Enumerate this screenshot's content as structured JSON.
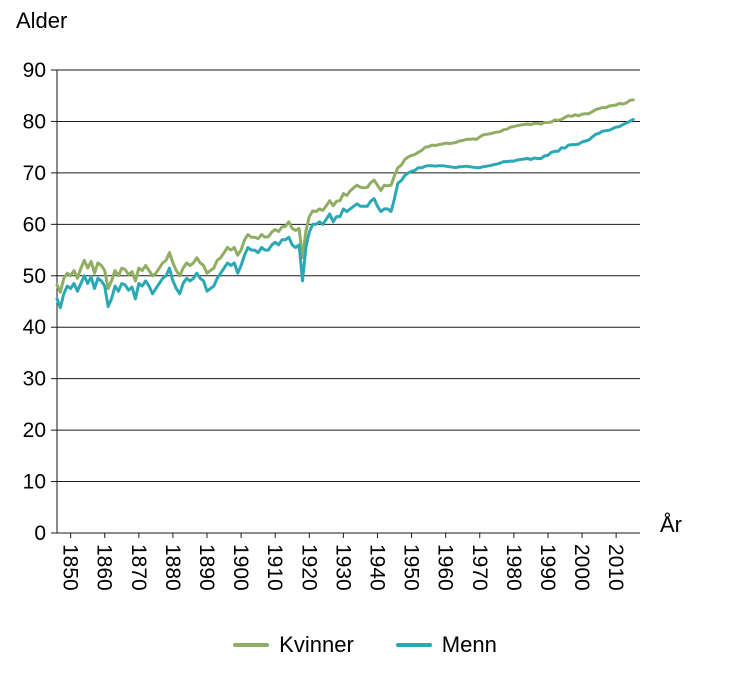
{
  "chart_data": {
    "type": "line",
    "title": "",
    "ylabel": "Alder",
    "xlabel": "År",
    "ylim": [
      0,
      90
    ],
    "ytick_step": 10,
    "xticks": [
      1850,
      1860,
      1870,
      1880,
      1890,
      1900,
      1910,
      1920,
      1930,
      1940,
      1950,
      1960,
      1970,
      1980,
      1990,
      2000,
      2010
    ],
    "x_start": 1846,
    "x_step": 1,
    "x_end": 2015,
    "grid": true,
    "legend_position": "bottom",
    "colors": {
      "grid": "#1a1a1a",
      "axis": "#1a1a1a",
      "text": "#000000",
      "background": "#ffffff"
    },
    "series": [
      {
        "name": "Kvinner",
        "color": "#8fae63",
        "values": [
          48.2,
          46.8,
          49.5,
          50.5,
          50.0,
          51.0,
          49.5,
          51.5,
          53.0,
          51.5,
          52.8,
          50.5,
          52.5,
          52.0,
          51.0,
          47.5,
          49.0,
          51.0,
          50.0,
          51.5,
          51.2,
          50.2,
          50.8,
          49.0,
          51.5,
          51.0,
          52.0,
          51.0,
          50.0,
          50.5,
          51.5,
          52.5,
          53.0,
          54.5,
          52.5,
          51.0,
          50.0,
          51.5,
          52.5,
          52.0,
          52.5,
          53.5,
          52.5,
          52.0,
          50.5,
          51.0,
          51.5,
          53.0,
          53.5,
          54.5,
          55.5,
          55.0,
          55.5,
          54.0,
          55.0,
          57.0,
          58.0,
          57.5,
          57.5,
          57.2,
          58.0,
          57.5,
          57.6,
          58.5,
          59.0,
          58.6,
          59.5,
          59.6,
          60.5,
          59.2,
          58.8,
          59.2,
          53.5,
          58.7,
          61.5,
          62.6,
          62.5,
          63.0,
          62.7,
          63.6,
          64.6,
          63.6,
          64.5,
          64.6,
          66.0,
          65.6,
          66.5,
          67.1,
          67.6,
          67.2,
          67.1,
          67.2,
          68.1,
          68.6,
          67.6,
          66.6,
          67.6,
          67.5,
          67.6,
          69.5,
          71.0,
          71.5,
          72.6,
          73.1,
          73.4,
          73.6,
          74.0,
          74.4,
          75.0,
          75.1,
          75.4,
          75.3,
          75.5,
          75.6,
          75.8,
          75.7,
          75.8,
          75.9,
          76.2,
          76.3,
          76.5,
          76.5,
          76.6,
          76.5,
          77.0,
          77.4,
          77.5,
          77.6,
          77.8,
          77.9,
          78.0,
          78.4,
          78.5,
          78.9,
          79.0,
          79.2,
          79.3,
          79.4,
          79.5,
          79.4,
          79.6,
          79.6,
          79.5,
          79.8,
          79.8,
          79.9,
          80.3,
          80.2,
          80.4,
          80.8,
          81.1,
          81.0,
          81.3,
          81.1,
          81.4,
          81.5,
          81.5,
          81.9,
          82.3,
          82.5,
          82.7,
          82.7,
          83.0,
          83.1,
          83.2,
          83.5,
          83.4,
          83.6,
          84.1,
          84.2
        ]
      },
      {
        "name": "Menn",
        "color": "#2aa9b4",
        "values": [
          45.5,
          43.8,
          46.5,
          48.0,
          47.5,
          48.5,
          47.0,
          48.5,
          50.0,
          48.5,
          49.8,
          47.5,
          49.5,
          49.0,
          48.0,
          44.0,
          45.5,
          48.0,
          47.0,
          48.5,
          48.2,
          47.2,
          47.8,
          45.5,
          48.5,
          48.0,
          49.0,
          48.0,
          46.5,
          47.5,
          48.5,
          49.5,
          50.0,
          51.5,
          49.0,
          47.5,
          46.5,
          48.5,
          49.5,
          49.0,
          49.5,
          50.5,
          49.5,
          49.0,
          47.0,
          47.5,
          48.0,
          49.5,
          50.5,
          51.5,
          52.5,
          52.0,
          52.5,
          50.5,
          52.0,
          54.0,
          55.5,
          55.0,
          55.0,
          54.5,
          55.5,
          55.0,
          55.0,
          56.0,
          56.5,
          56.0,
          57.0,
          57.0,
          57.5,
          56.0,
          55.5,
          56.0,
          49.0,
          55.5,
          58.5,
          60.0,
          60.0,
          60.5,
          60.0,
          61.0,
          62.0,
          60.5,
          61.5,
          61.5,
          63.0,
          62.5,
          63.0,
          63.5,
          64.0,
          63.5,
          63.5,
          63.5,
          64.5,
          65.0,
          63.5,
          62.5,
          63.0,
          63.0,
          62.5,
          65.0,
          68.0,
          68.5,
          69.5,
          70.0,
          70.3,
          70.5,
          71.0,
          71.0,
          71.3,
          71.4,
          71.4,
          71.3,
          71.4,
          71.4,
          71.3,
          71.2,
          71.1,
          71.0,
          71.2,
          71.2,
          71.3,
          71.2,
          71.1,
          71.0,
          71.0,
          71.2,
          71.3,
          71.4,
          71.6,
          71.7,
          71.9,
          72.2,
          72.2,
          72.3,
          72.3,
          72.5,
          72.6,
          72.7,
          72.8,
          72.6,
          72.9,
          72.8,
          72.8,
          73.3,
          73.4,
          74.0,
          74.2,
          74.2,
          74.9,
          74.8,
          75.4,
          75.5,
          75.5,
          75.6,
          76.0,
          76.2,
          76.4,
          77.0,
          77.5,
          77.7,
          78.1,
          78.2,
          78.3,
          78.6,
          78.9,
          79.0,
          79.4,
          79.7,
          80.0,
          80.4
        ]
      }
    ]
  }
}
